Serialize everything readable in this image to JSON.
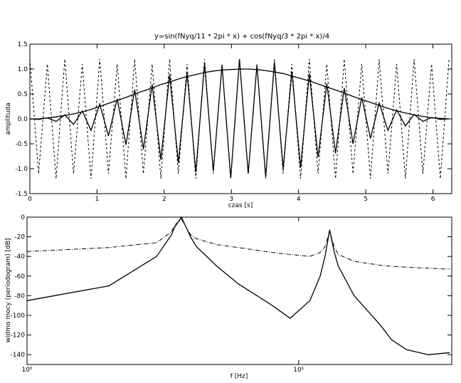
{
  "chart_data": [
    {
      "type": "line",
      "title": "y=sin(fNyq/11 * 2pi * x) + cos(fNyq/3 * 2pi * x)/4",
      "x_label": "czas [s]",
      "y_label": "amplituda",
      "xlim": [
        0,
        6.28
      ],
      "ylim": [
        -1.5,
        1.5
      ],
      "xticks": [
        0,
        1,
        2,
        3,
        4,
        5,
        6
      ],
      "yticks": [
        -1.5,
        {
          "value": -1,
          "label": "-1.0"
        },
        -0.5,
        {
          "value": 0,
          "label": "0.0"
        },
        0.5,
        {
          "value": 1,
          "label": "1.0"
        },
        1.5
      ],
      "x": [
        0,
        0.13,
        0.26,
        0.39,
        0.52,
        0.65,
        0.78,
        0.91,
        1.04,
        1.17,
        1.3,
        1.43,
        1.56,
        1.69,
        1.82,
        1.95,
        2.08,
        2.21,
        2.34,
        2.47,
        2.6,
        2.73,
        2.86,
        2.99,
        3.12,
        3.25,
        3.38,
        3.51,
        3.64,
        3.77,
        3.9,
        4.03,
        4.16,
        4.29,
        4.42,
        4.55,
        4.68,
        4.81,
        4.94,
        5.07,
        5.2,
        5.33,
        5.46,
        5.59,
        5.72,
        5.85,
        5.98,
        6.11,
        6.24
      ],
      "series": [
        {
          "color": "#000000",
          "dash": "3,3",
          "width": 1,
          "values": [
            1.2,
            -1.1,
            1.1,
            -1.2,
            1.2,
            -1.1,
            1.1,
            -1.2,
            1.2,
            -1.1,
            1.1,
            -1.2,
            1.2,
            -1.1,
            1.1,
            -1.2,
            1.2,
            -1.1,
            1.1,
            -1.2,
            1.2,
            -1.1,
            1.1,
            -1.2,
            1.2,
            -1.1,
            1.1,
            -1.2,
            1.2,
            -1.1,
            1.1,
            -1.2,
            1.2,
            -1.1,
            1.1,
            -1.2,
            1.2,
            -1.1,
            1.1,
            -1.2,
            1.2,
            -1.1,
            1.1,
            -1.2,
            1.2,
            -1.1,
            1.1,
            -1.2,
            1.2
          ]
        },
        {
          "color": "#000000",
          "width": 1.3,
          "values": [
            0,
            -0.01,
            0.02,
            -0.05,
            0.08,
            -0.11,
            0.16,
            -0.23,
            0.3,
            -0.34,
            0.4,
            -0.52,
            0.59,
            -0.61,
            0.69,
            -0.82,
            0.89,
            -0.88,
            0.93,
            -1.07,
            1.11,
            -1.05,
            1.08,
            -1.19,
            1.2,
            -1.1,
            1.08,
            -1.16,
            1.13,
            -1.0,
            0.95,
            -0.98,
            0.91,
            -0.77,
            0.71,
            -0.69,
            0.62,
            -0.5,
            0.43,
            -0.39,
            0.32,
            -0.23,
            0.18,
            -0.14,
            0.09,
            -0.05,
            0.03,
            -0.01,
            0
          ]
        },
        {
          "color": "#000000",
          "width": 1.3,
          "values": [
            0,
            0,
            0.02,
            0.04,
            0.07,
            0.1,
            0.14,
            0.19,
            0.25,
            0.31,
            0.37,
            0.43,
            0.5,
            0.56,
            0.62,
            0.69,
            0.74,
            0.8,
            0.85,
            0.89,
            0.93,
            0.96,
            0.98,
            0.99,
            1.0,
            1.0,
            0.99,
            0.97,
            0.94,
            0.91,
            0.86,
            0.81,
            0.76,
            0.7,
            0.64,
            0.58,
            0.52,
            0.45,
            0.39,
            0.33,
            0.27,
            0.21,
            0.16,
            0.12,
            0.08,
            0.05,
            0.02,
            0.01,
            0
          ]
        }
      ]
    },
    {
      "type": "line",
      "log_x": true,
      "x_label": "f [Hz]",
      "y_label": "widmo mocy (periodogram) [dB]",
      "xlim": [
        1,
        36.6
      ],
      "ylim": [
        -150,
        0
      ],
      "xticks": [
        {
          "value": 1,
          "label": "10⁰"
        },
        {
          "value": 10,
          "label": "10¹"
        }
      ],
      "yticks": [
        -140,
        -120,
        -100,
        -80,
        -60,
        -40,
        -20,
        0
      ],
      "x": [
        1,
        2,
        3,
        3.4,
        3.5,
        3.7,
        4,
        4.2,
        5,
        6,
        8,
        9.3,
        11,
        12,
        12.5,
        13,
        13.5,
        14,
        16,
        20,
        22,
        25,
        30,
        36
      ],
      "series": [
        {
          "color": "#000000",
          "dash": "6,2,1,2",
          "width": 1,
          "values": [
            -35,
            -31,
            -26,
            -15,
            -8,
            -2,
            -18,
            -22,
            -28,
            -31,
            -36,
            -38,
            -40,
            -36,
            -30,
            -14,
            -30,
            -38,
            -45,
            -49,
            -50,
            -51,
            -52,
            -53
          ]
        },
        {
          "color": "#000000",
          "width": 1.3,
          "values": [
            -85,
            -70,
            -40,
            -18,
            -10,
            0,
            -20,
            -30,
            -50,
            -68,
            -90,
            -103,
            -85,
            -60,
            -40,
            -13,
            -35,
            -50,
            -80,
            -110,
            -125,
            -135,
            -140,
            -138
          ]
        }
      ]
    }
  ]
}
